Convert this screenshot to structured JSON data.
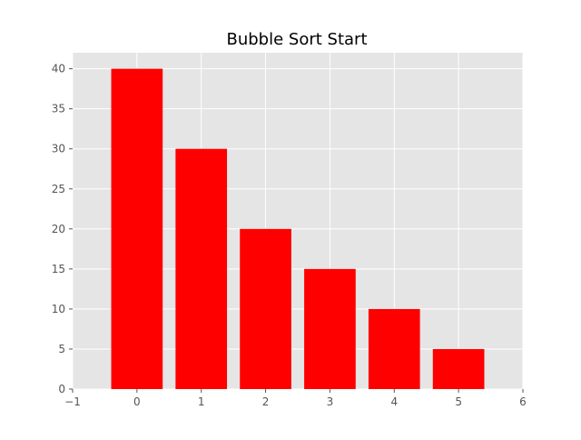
{
  "chart_data": {
    "type": "bar",
    "title": "Bubble Sort Start",
    "xlabel": "",
    "ylabel": "",
    "x": [
      0,
      1,
      2,
      3,
      4,
      5
    ],
    "values": [
      40,
      30,
      20,
      15,
      10,
      5
    ],
    "xlim": [
      -1,
      6
    ],
    "ylim": [
      0,
      42
    ],
    "xticks": [
      -1,
      0,
      1,
      2,
      3,
      4,
      5,
      6
    ],
    "yticks": [
      0,
      5,
      10,
      15,
      20,
      25,
      30,
      35,
      40
    ],
    "xtick_labels": [
      "−1",
      "0",
      "1",
      "2",
      "3",
      "4",
      "5",
      "6"
    ],
    "ytick_labels": [
      "0",
      "5",
      "10",
      "15",
      "20",
      "25",
      "30",
      "35",
      "40"
    ],
    "bar_color": "#ff0000",
    "background_color": "#e5e5e5",
    "grid": true,
    "grid_color": "#ffffff",
    "legend": "none"
  }
}
